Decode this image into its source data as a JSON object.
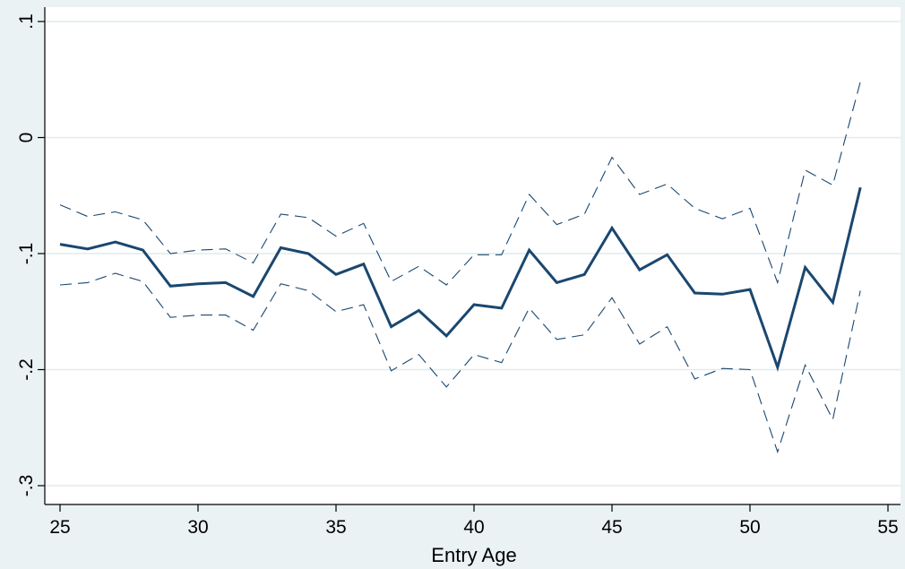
{
  "chart_data": {
    "type": "line",
    "title": "",
    "xlabel": "Entry Age",
    "ylabel": "",
    "xlim": [
      25,
      55
    ],
    "ylim": [
      -0.3,
      0.1
    ],
    "grid": true,
    "x_ticks": [
      {
        "value": 25,
        "label": "25"
      },
      {
        "value": 30,
        "label": "30"
      },
      {
        "value": 35,
        "label": "35"
      },
      {
        "value": 40,
        "label": "40"
      },
      {
        "value": 45,
        "label": "45"
      },
      {
        "value": 50,
        "label": "50"
      },
      {
        "value": 55,
        "label": "55"
      }
    ],
    "y_ticks": [
      {
        "value": -0.3,
        "label": "-.3"
      },
      {
        "value": -0.2,
        "label": "-.2"
      },
      {
        "value": -0.1,
        "label": "-.1"
      },
      {
        "value": 0,
        "label": "0"
      },
      {
        "value": 0.1,
        "label": ".1"
      }
    ],
    "x": [
      25,
      26,
      27,
      28,
      29,
      30,
      31,
      32,
      33,
      34,
      35,
      36,
      37,
      38,
      39,
      40,
      41,
      42,
      43,
      44,
      45,
      46,
      47,
      48,
      49,
      50,
      51,
      52,
      53,
      54
    ],
    "series": [
      {
        "role": "estimate",
        "style": "solid",
        "values": [
          -0.092,
          -0.096,
          -0.09,
          -0.097,
          -0.128,
          -0.126,
          -0.125,
          -0.137,
          -0.095,
          -0.1,
          -0.118,
          -0.109,
          -0.163,
          -0.149,
          -0.171,
          -0.144,
          -0.147,
          -0.097,
          -0.125,
          -0.118,
          -0.078,
          -0.114,
          -0.101,
          -0.134,
          -0.135,
          -0.131,
          -0.198,
          -0.112,
          -0.142,
          -0.043
        ]
      },
      {
        "role": "upper-ci",
        "style": "dashed",
        "values": [
          -0.058,
          -0.068,
          -0.064,
          -0.071,
          -0.1,
          -0.097,
          -0.096,
          -0.108,
          -0.066,
          -0.069,
          -0.085,
          -0.074,
          -0.124,
          -0.111,
          -0.127,
          -0.101,
          -0.101,
          -0.049,
          -0.075,
          -0.066,
          -0.017,
          -0.049,
          -0.04,
          -0.061,
          -0.07,
          -0.061,
          -0.125,
          -0.028,
          -0.041,
          0.048
        ]
      },
      {
        "role": "lower-ci",
        "style": "dashed",
        "values": [
          -0.127,
          -0.125,
          -0.117,
          -0.124,
          -0.155,
          -0.153,
          -0.153,
          -0.166,
          -0.126,
          -0.132,
          -0.15,
          -0.144,
          -0.201,
          -0.187,
          -0.215,
          -0.187,
          -0.194,
          -0.147,
          -0.174,
          -0.17,
          -0.138,
          -0.178,
          -0.163,
          -0.208,
          -0.199,
          -0.2,
          -0.271,
          -0.196,
          -0.243,
          -0.132
        ]
      }
    ],
    "colors": {
      "background": "#eaf2f3",
      "plot_area": "#ffffff",
      "line": "#1a476f",
      "grid": "#e1ecec",
      "axis": "#000000"
    }
  }
}
